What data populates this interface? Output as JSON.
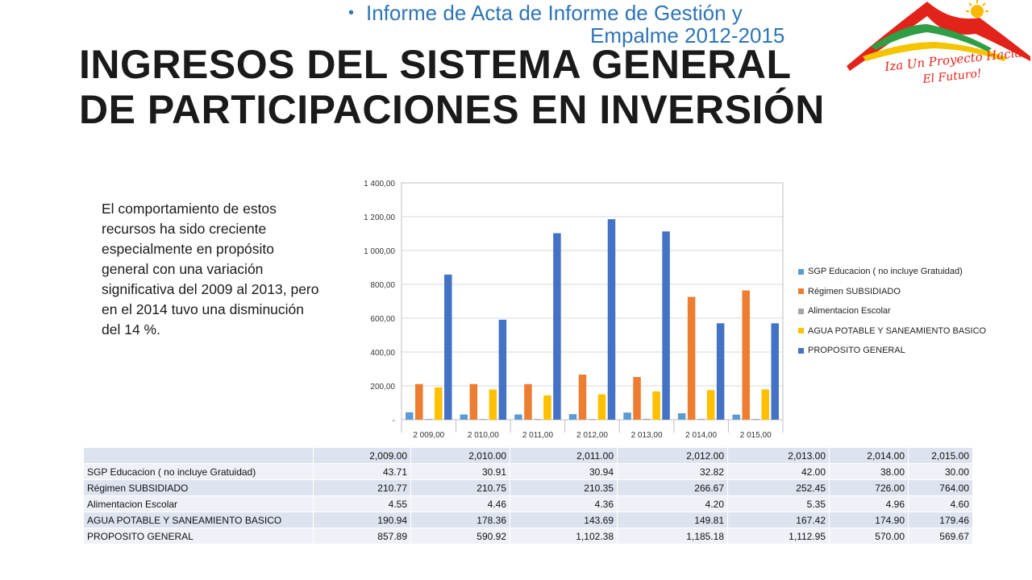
{
  "header": {
    "subtitle_line1": "Informe de Acta de Informe de Gestión y",
    "subtitle_line2": "Empalme 2012-2015",
    "title_line1": "INGRESOS DEL SISTEMA GENERAL",
    "title_line2": "DE PARTICIPACIONES EN INVERSIÓN"
  },
  "logo": {
    "text_line1": "Iza Un Proyecto Hacia",
    "text_line2": "El Futuro!",
    "colors": {
      "red": "#e2231a",
      "green": "#2f9e44",
      "yellow": "#f5c400",
      "sun": "#f6b800"
    }
  },
  "description": "El comportamiento de estos recursos ha sido creciente especialmente en propósito general con una variación significativa del 2009 al 2013, pero en el 2014 tuvo una disminución del 14 %.",
  "chart_data": {
    "type": "bar",
    "categories": [
      "2 009,00",
      "2 010,00",
      "2 011,00",
      "2 012,00",
      "2 013,00",
      "2 014,00",
      "2 015,00"
    ],
    "series": [
      {
        "name": "SGP Educacion ( no incluye Gratuidad)",
        "color": "#5b9bd5",
        "values": [
          43.71,
          30.91,
          30.94,
          32.82,
          42.0,
          38.0,
          30.0
        ]
      },
      {
        "name": "Régimen SUBSIDIADO",
        "color": "#ed7d31",
        "values": [
          210.77,
          210.75,
          210.35,
          266.67,
          252.45,
          726.0,
          764.0
        ]
      },
      {
        "name": "Alimentacion Escolar",
        "color": "#a5a5a5",
        "values": [
          4.55,
          4.46,
          4.36,
          4.2,
          5.35,
          4.96,
          4.6
        ]
      },
      {
        "name": "AGUA POTABLE Y SANEAMIENTO BASICO",
        "color": "#ffc000",
        "values": [
          190.94,
          178.36,
          143.69,
          149.81,
          167.42,
          174.9,
          179.46
        ]
      },
      {
        "name": "PROPOSITO GENERAL",
        "color": "#4472c4",
        "values": [
          857.89,
          590.92,
          1102.38,
          1185.18,
          1112.95,
          570.0,
          569.67
        ]
      }
    ],
    "ylim": [
      0,
      1400
    ],
    "yticks": [
      "-",
      "200,00",
      "400,00",
      "600,00",
      "800,00",
      "1 000,00",
      "1 200,00",
      "1 400,00"
    ],
    "grid": true,
    "legend_position": "right"
  },
  "table": {
    "header": [
      "2,009.00",
      "2,010.00",
      "2,011.00",
      "2,012.00",
      "2,013.00",
      "2,014.00",
      "2,015.00"
    ],
    "rows": [
      {
        "label": "SGP Educacion ( no incluye Gratuidad)",
        "values": [
          "43.71",
          "30.91",
          "30.94",
          "32.82",
          "42.00",
          "38.00",
          "30.00"
        ]
      },
      {
        "label": "Régimen SUBSIDIADO",
        "values": [
          "210.77",
          "210.75",
          "210.35",
          "266.67",
          "252.45",
          "726.00",
          "764.00"
        ]
      },
      {
        "label": "Alimentacion Escolar",
        "values": [
          "4.55",
          "4.46",
          "4.36",
          "4.20",
          "5.35",
          "4.96",
          "4.60"
        ]
      },
      {
        "label": "AGUA POTABLE Y SANEAMIENTO BASICO",
        "values": [
          "190.94",
          "178.36",
          "143.69",
          "149.81",
          "167.42",
          "174.90",
          "179.46"
        ]
      },
      {
        "label": "PROPOSITO GENERAL",
        "values": [
          "857.89",
          "590.92",
          "1,102.38",
          "1,185.18",
          "1,112.95",
          "570.00",
          "569.67"
        ]
      }
    ]
  }
}
